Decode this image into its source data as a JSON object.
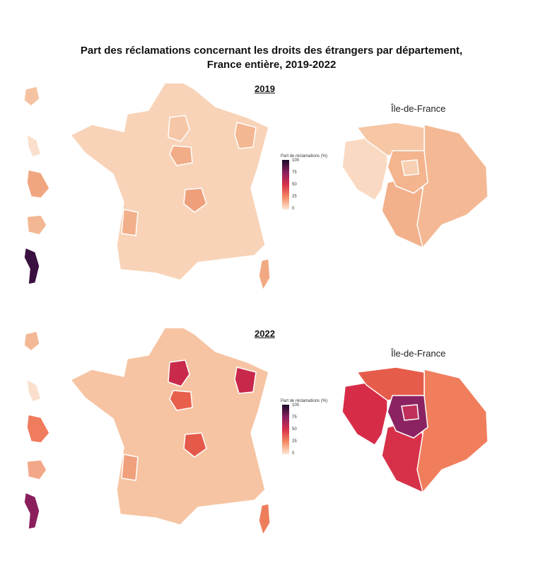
{
  "title_line1": "Part des réclamations concernant les droits des étrangers par département,",
  "title_line2": "France entière, 2019-2022",
  "legend": {
    "title": "Part de réclamations (%)",
    "ticks": [
      "100",
      "75",
      "50",
      "25",
      "0"
    ]
  },
  "idf_label": "Île-de-France",
  "panels": [
    {
      "year": "2019",
      "colors": {
        "base": "#f8d3b8",
        "paris_area": "#f6c7a6",
        "centre": "#f1ad87",
        "auvergne": "#eea07c",
        "east": "#f3b892",
        "landes": "#f2b08a",
        "guadeloupe": "#f5c3a2",
        "martinique": "#fae0cc",
        "guyane": "#f0a681",
        "reunion": "#f3b893",
        "mayotte": "#3a1040",
        "corse": "#f0a982",
        "idf_77": "#f4b994",
        "idf_78": "#fad9c2",
        "idf_91": "#f2b08b",
        "idf_95": "#f6c6a5",
        "idf_inner": "#f3b48e",
        "idf_paris": "#f7cfb2"
      }
    },
    {
      "year": "2022",
      "colors": {
        "base": "#f6c4a3",
        "paris_area": "#c92a4c",
        "centre": "#e8604c",
        "auvergne": "#e4594a",
        "east": "#c8284c",
        "landes": "#f0a07c",
        "guadeloupe": "#f3b895",
        "martinique": "#fae0cc",
        "guyane": "#ef7c5c",
        "reunion": "#f2a888",
        "mayotte": "#8a1f5c",
        "corse": "#ee7d5c",
        "idf_77": "#f07e5d",
        "idf_78": "#d72c48",
        "idf_91": "#d73049",
        "idf_95": "#e65c4a",
        "idf_inner": "#8b2362",
        "idf_paris": "#c0305a"
      }
    }
  ]
}
